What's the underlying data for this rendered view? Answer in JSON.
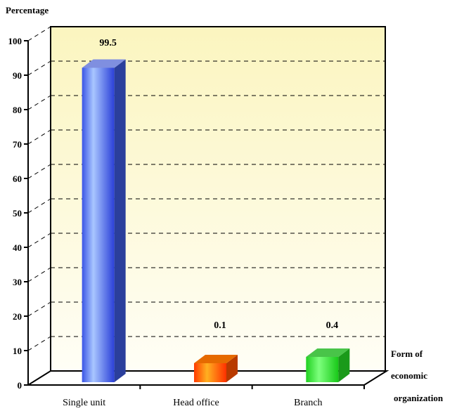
{
  "chart_data": {
    "type": "bar",
    "title": "",
    "ylabel": "Percentage",
    "xlabel_lines": [
      "Form of",
      "economic",
      "organization"
    ],
    "categories": [
      "Single unit",
      "Head office",
      "Branch"
    ],
    "values": [
      99.5,
      0.1,
      0.4
    ],
    "data_labels": [
      "99.5",
      "0.1",
      "0.4"
    ],
    "yticks": [
      0,
      10,
      20,
      30,
      40,
      50,
      60,
      70,
      80,
      90,
      100
    ],
    "ylim": [
      0,
      100
    ],
    "grid": true,
    "legend": "none",
    "bar_colors": [
      "#4f74ee",
      "#ff5a00",
      "#2fe02f"
    ],
    "wall_color": "#fdf8c6"
  }
}
